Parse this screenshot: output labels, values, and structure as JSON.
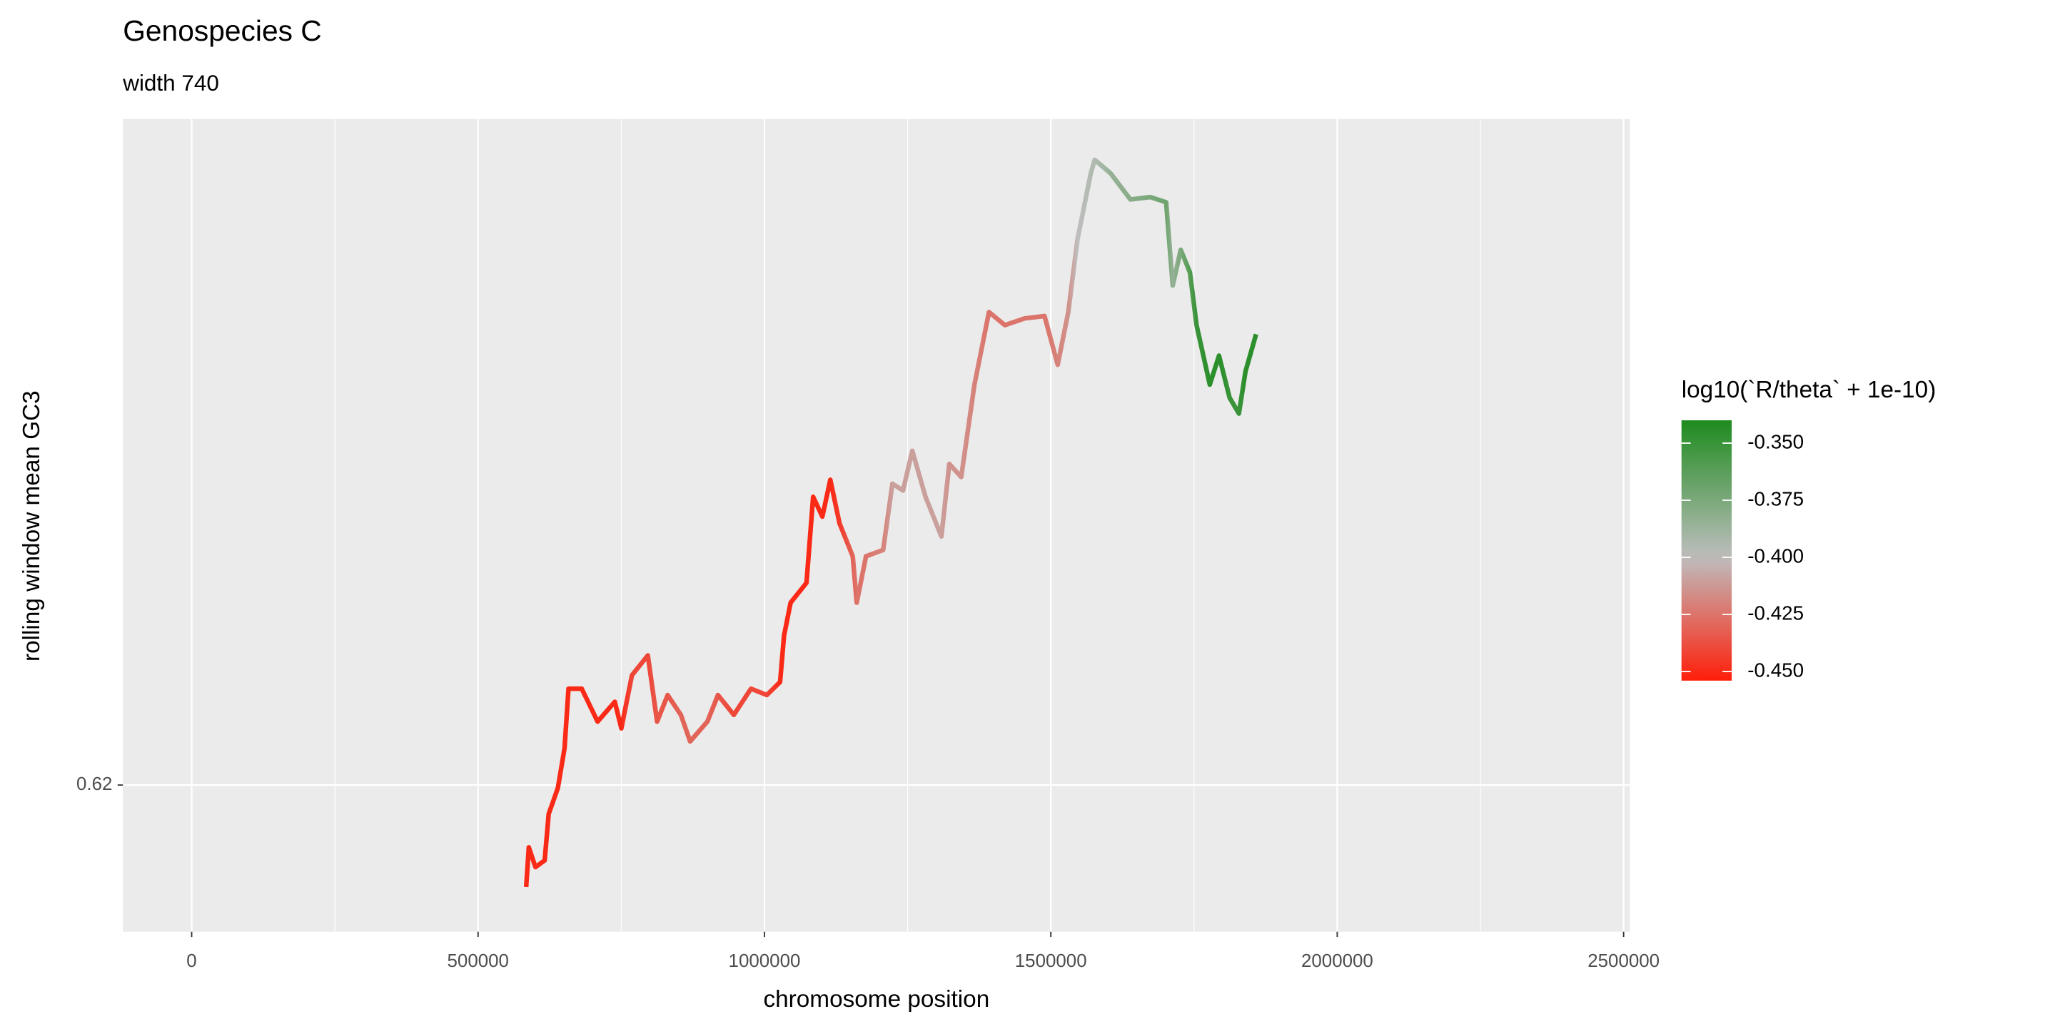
{
  "chart_data": {
    "type": "line",
    "title": "Genospecies C",
    "subtitle": "width 740",
    "x_label": "chromosome position",
    "y_label": "rolling window mean GC3",
    "xlim": [
      -120000,
      2511000
    ],
    "ylim": [
      0.6163,
      0.6368
    ],
    "xticks": [
      0,
      500000,
      1000000,
      1500000,
      2000000,
      2500000
    ],
    "yticks": [
      0.62
    ],
    "grid": true,
    "x": [
      584000,
      588600,
      600200,
      616300,
      623300,
      639400,
      651000,
      657900,
      681000,
      708700,
      738700,
      750200,
      768700,
      796400,
      812600,
      831000,
      854100,
      870300,
      900300,
      918800,
      946500,
      976500,
      1004100,
      1027300,
      1034200,
      1045700,
      1073400,
      1085000,
      1101100,
      1115000,
      1131100,
      1154200,
      1161100,
      1177300,
      1207300,
      1223400,
      1241900,
      1258100,
      1281200,
      1308900,
      1322700,
      1343500,
      1366600,
      1392000,
      1419700,
      1454300,
      1489000,
      1512000,
      1530500,
      1546600,
      1569700,
      1576600,
      1604300,
      1638900,
      1673600,
      1701300,
      1712800,
      1726700,
      1742800,
      1754400,
      1777500,
      1793600,
      1812100,
      1828300,
      1839800,
      1858300
    ],
    "series": [
      {
        "values": [
          0.61743,
          0.61843,
          0.61793,
          0.6181,
          0.61927,
          0.61993,
          0.62093,
          0.62243,
          0.62243,
          0.6216,
          0.6221,
          0.62143,
          0.62277,
          0.62327,
          0.6216,
          0.62227,
          0.62177,
          0.6211,
          0.6216,
          0.62227,
          0.62177,
          0.62243,
          0.62227,
          0.6226,
          0.62377,
          0.6246,
          0.6251,
          0.62727,
          0.62677,
          0.6277,
          0.6266,
          0.62577,
          0.6246,
          0.62577,
          0.62593,
          0.6276,
          0.62743,
          0.62843,
          0.62727,
          0.62627,
          0.6281,
          0.62777,
          0.6301,
          0.63193,
          0.6316,
          0.63177,
          0.63183,
          0.6306,
          0.63193,
          0.63377,
          0.63543,
          0.63577,
          0.63543,
          0.63477,
          0.63483,
          0.6347,
          0.6326,
          0.6335,
          0.63293,
          0.6316,
          0.6301,
          0.63083,
          0.62977,
          0.62937,
          0.63043,
          0.63137
        ],
        "color_values": [
          -0.45,
          -0.45,
          -0.45,
          -0.45,
          -0.45,
          -0.45,
          -0.45,
          -0.45,
          -0.45,
          -0.45,
          -0.45,
          -0.45,
          -0.44,
          -0.44,
          -0.435,
          -0.435,
          -0.43,
          -0.43,
          -0.43,
          -0.435,
          -0.44,
          -0.44,
          -0.44,
          -0.45,
          -0.45,
          -0.45,
          -0.45,
          -0.45,
          -0.45,
          -0.45,
          -0.445,
          -0.43,
          -0.425,
          -0.425,
          -0.42,
          -0.41,
          -0.41,
          -0.41,
          -0.41,
          -0.41,
          -0.415,
          -0.415,
          -0.42,
          -0.425,
          -0.425,
          -0.425,
          -0.425,
          -0.42,
          -0.415,
          -0.4,
          -0.395,
          -0.395,
          -0.385,
          -0.38,
          -0.375,
          -0.37,
          -0.385,
          -0.375,
          -0.36,
          -0.35,
          -0.345,
          -0.345,
          -0.35,
          -0.35,
          -0.345,
          -0.345
        ]
      }
    ],
    "colorbar": {
      "title": "log10(`R/theta` + 1e-10)",
      "limits": [
        -0.454,
        -0.34
      ],
      "midpoint": -0.4,
      "low": "#ff1e0a",
      "mid": "#bebebe",
      "high": "#1e8b1e",
      "ticks": [
        {
          "value": -0.35,
          "label": "-0.350"
        },
        {
          "value": -0.375,
          "label": "-0.375"
        },
        {
          "value": -0.4,
          "label": "-0.400"
        },
        {
          "value": -0.425,
          "label": "-0.425"
        },
        {
          "value": -0.45,
          "label": "-0.450"
        }
      ]
    }
  }
}
